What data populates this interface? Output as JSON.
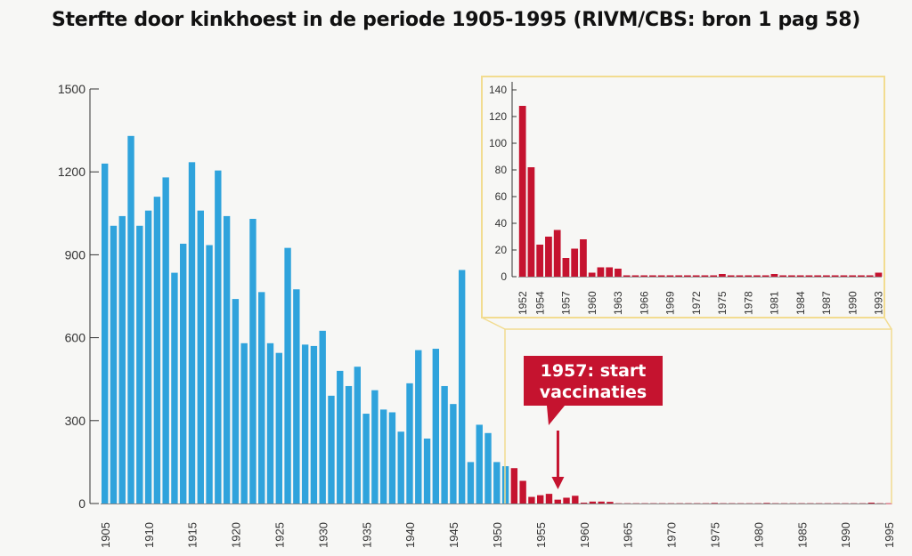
{
  "title": "Sterfte door kinkhoest in de periode 1905-1995 (RIVM/CBS: bron 1 pag 58)",
  "colors": {
    "pre_vaccination": "#2fa3dc",
    "post_vaccination": "#c5132f",
    "inset_frame": "#f2dc90",
    "axis": "#333333"
  },
  "annotation": {
    "label_line1": "1957: start",
    "label_line2": "vaccinaties",
    "year": 1957
  },
  "chart_data": [
    {
      "type": "bar",
      "name": "main",
      "xlabel": "",
      "ylabel": "",
      "ylim": [
        0,
        1500
      ],
      "yticks": [
        0,
        300,
        600,
        900,
        1200,
        1500
      ],
      "xticks": [
        1905,
        1910,
        1915,
        1920,
        1925,
        1930,
        1935,
        1940,
        1945,
        1950,
        1955,
        1960,
        1965,
        1970,
        1975,
        1980,
        1985,
        1990,
        1995
      ],
      "vaccination_split_year": 1952,
      "x": [
        1905,
        1906,
        1907,
        1908,
        1909,
        1910,
        1911,
        1912,
        1913,
        1914,
        1915,
        1916,
        1917,
        1918,
        1919,
        1920,
        1921,
        1922,
        1923,
        1924,
        1925,
        1926,
        1927,
        1928,
        1929,
        1930,
        1931,
        1932,
        1933,
        1934,
        1935,
        1936,
        1937,
        1938,
        1939,
        1940,
        1941,
        1942,
        1943,
        1944,
        1945,
        1946,
        1947,
        1948,
        1949,
        1950,
        1951,
        1952,
        1953,
        1954,
        1955,
        1956,
        1957,
        1958,
        1959,
        1960,
        1961,
        1962,
        1963,
        1964,
        1965,
        1966,
        1967,
        1968,
        1969,
        1970,
        1971,
        1972,
        1973,
        1974,
        1975,
        1976,
        1977,
        1978,
        1979,
        1980,
        1981,
        1982,
        1983,
        1984,
        1985,
        1986,
        1987,
        1988,
        1989,
        1990,
        1991,
        1992,
        1993,
        1994,
        1995
      ],
      "values": [
        1230,
        1005,
        1040,
        1330,
        1005,
        1060,
        1110,
        1180,
        835,
        940,
        1235,
        1060,
        935,
        1205,
        1040,
        740,
        580,
        1030,
        765,
        580,
        545,
        925,
        775,
        575,
        570,
        625,
        390,
        480,
        425,
        495,
        325,
        410,
        340,
        330,
        260,
        435,
        555,
        235,
        560,
        425,
        360,
        845,
        150,
        285,
        255,
        150,
        135,
        128,
        82,
        24,
        30,
        35,
        14,
        21,
        28,
        3,
        7,
        7,
        6,
        1,
        1,
        1,
        1,
        1,
        1,
        1,
        1,
        1,
        1,
        1,
        2,
        1,
        1,
        1,
        1,
        1,
        2,
        1,
        1,
        1,
        1,
        1,
        1,
        1,
        1,
        1,
        1,
        1,
        3,
        1,
        1
      ]
    },
    {
      "type": "bar",
      "name": "inset 1952-1993",
      "ylim": [
        0,
        140
      ],
      "yticks": [
        0,
        20,
        40,
        60,
        80,
        100,
        120,
        140
      ],
      "xticks": [
        1952,
        1954,
        1957,
        1960,
        1963,
        1966,
        1969,
        1972,
        1975,
        1978,
        1981,
        1984,
        1987,
        1990,
        1993
      ],
      "x": [
        1952,
        1953,
        1954,
        1955,
        1956,
        1957,
        1958,
        1959,
        1960,
        1961,
        1962,
        1963,
        1964,
        1965,
        1966,
        1967,
        1968,
        1969,
        1970,
        1971,
        1972,
        1973,
        1974,
        1975,
        1976,
        1977,
        1978,
        1979,
        1980,
        1981,
        1982,
        1983,
        1984,
        1985,
        1986,
        1987,
        1988,
        1989,
        1990,
        1991,
        1992,
        1993
      ],
      "values": [
        128,
        82,
        24,
        30,
        35,
        14,
        21,
        28,
        3,
        7,
        7,
        6,
        1,
        1,
        1,
        1,
        1,
        1,
        1,
        1,
        1,
        1,
        1,
        2,
        1,
        1,
        1,
        1,
        1,
        2,
        1,
        1,
        1,
        1,
        1,
        1,
        1,
        1,
        1,
        1,
        1,
        3
      ]
    }
  ]
}
